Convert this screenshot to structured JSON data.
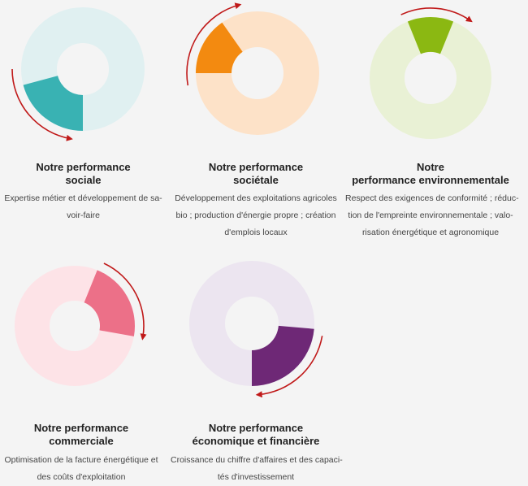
{
  "cards": [
    {
      "title_lines": [
        "Notre performance",
        "sociale"
      ],
      "desc_lines": [
        "Expertise métier et développement de sa-",
        "voir-faire"
      ],
      "colors": {
        "light": "#e0f0f1",
        "dark": "#39b2b3",
        "arrow": "#c01919"
      },
      "icon": "donut-segment-arrow-icon"
    },
    {
      "title_lines": [
        "Notre performance",
        "sociétale"
      ],
      "desc_lines": [
        "Développement des exploitations agricoles",
        "bio ; production d'énergie propre ; création",
        "d'emplois locaux"
      ],
      "colors": {
        "light": "#fde2c8",
        "dark": "#f38a10",
        "arrow": "#c01919"
      },
      "icon": "donut-segment-arrow-icon"
    },
    {
      "title_lines": [
        "Notre",
        "performance environnementale"
      ],
      "desc_lines": [
        "Respect des exigences de conformité ; réduc-",
        "tion de l'empreinte environnementale ; valo-",
        "risation énergétique et agronomique"
      ],
      "colors": {
        "light": "#e9f1d5",
        "dark": "#8bb812",
        "arrow": "#c01919"
      },
      "icon": "donut-segment-arrow-icon"
    },
    {
      "title_lines": [
        "Notre performance",
        "commerciale"
      ],
      "desc_lines": [
        "Optimisation de la facture énergétique et",
        "des coûts d'exploitation"
      ],
      "colors": {
        "light": "#fde3e7",
        "dark": "#ec7088",
        "arrow": "#c01919"
      },
      "icon": "donut-segment-arrow-icon"
    },
    {
      "title_lines": [
        "Notre performance",
        "économique et financière"
      ],
      "desc_lines": [
        "Croissance du chiffre d'affaires et des capaci-",
        "tés d'investissement"
      ],
      "colors": {
        "light": "#ece5f0",
        "dark": "#6e2876",
        "arrow": "#c01919"
      },
      "icon": "donut-segment-arrow-icon"
    }
  ]
}
